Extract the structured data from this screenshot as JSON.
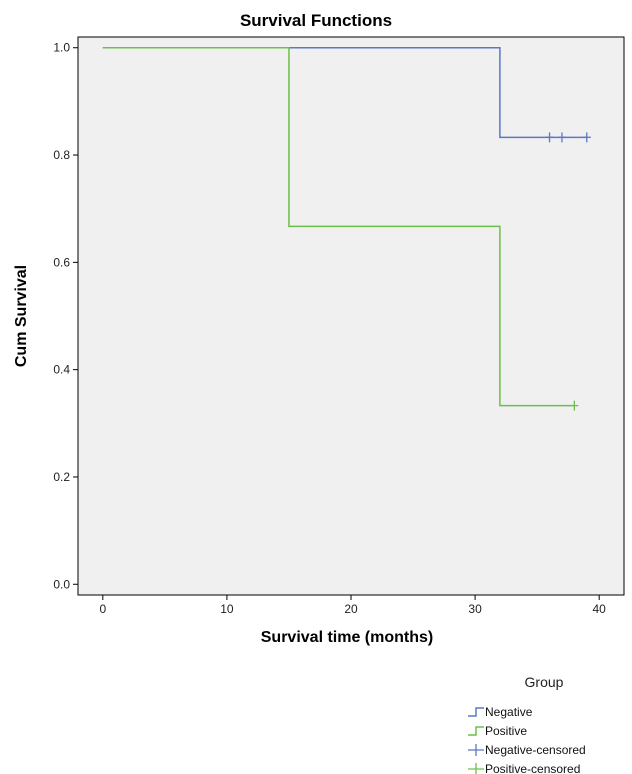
{
  "chart_data": {
    "type": "line",
    "title": "Survival Functions",
    "xlabel": "Survival time (months)",
    "ylabel": "Cum Survival",
    "xlim": [
      -2,
      42
    ],
    "ylim": [
      -0.02,
      1.02
    ],
    "x_ticks": [
      0,
      10,
      20,
      30,
      40
    ],
    "x_tick_labels": [
      "0",
      "10",
      "20",
      "30",
      "40"
    ],
    "y_ticks": [
      0.0,
      0.2,
      0.4,
      0.6,
      0.8,
      1.0
    ],
    "y_tick_labels": [
      "0.0",
      "0.2",
      "0.4",
      "0.6",
      "0.8",
      "1.0"
    ],
    "grid": false,
    "legend_position": "bottom-right",
    "legend_title": "Group",
    "series": [
      {
        "name": "Negative",
        "color": "#5b78c6",
        "steps": [
          [
            0,
            1.0
          ],
          [
            32,
            0.833
          ],
          [
            39,
            0.833
          ]
        ],
        "censored_name": "Negative-censored",
        "censored": [
          [
            36,
            0.833
          ],
          [
            37,
            0.833
          ],
          [
            39,
            0.833
          ]
        ]
      },
      {
        "name": "Positive",
        "color": "#6cc04a",
        "steps": [
          [
            0,
            1.0
          ],
          [
            15,
            0.667
          ],
          [
            32,
            0.333
          ],
          [
            38,
            0.333
          ]
        ],
        "censored_name": "Positive-censored",
        "censored": [
          [
            38,
            0.333
          ]
        ]
      }
    ]
  }
}
